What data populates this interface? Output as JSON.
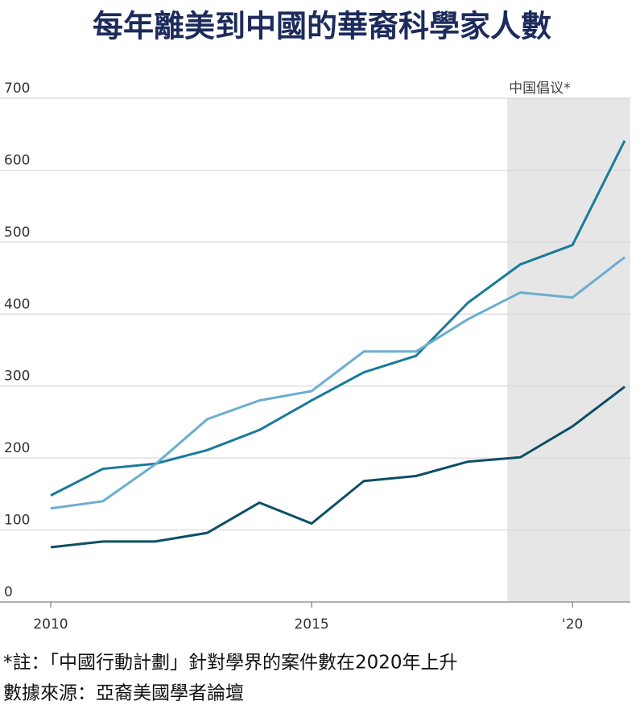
{
  "chart_data": {
    "type": "line",
    "title": "每年離美到中國的華裔科學家人數",
    "x": [
      2010,
      2011,
      2012,
      2013,
      2014,
      2015,
      2016,
      2017,
      2018,
      2019,
      2020,
      2021
    ],
    "xlim": [
      2010,
      2021
    ],
    "xticks": [
      2010,
      2015,
      {
        "value": 2020,
        "label": "'20"
      }
    ],
    "ylim": [
      0,
      700
    ],
    "yticks": [
      0,
      100,
      200,
      300,
      400,
      500,
      600,
      700
    ],
    "grid": true,
    "highlight": {
      "xlim": [
        2018.75,
        2021
      ],
      "label": "中国倡议*"
    },
    "series": [
      {
        "color": "#1a7a9a",
        "values": [
          148,
          185,
          192,
          211,
          239,
          280,
          319,
          342,
          416,
          469,
          496,
          641
        ]
      },
      {
        "color": "#6aaed0",
        "values": [
          130,
          140,
          191,
          254,
          280,
          293,
          348,
          348,
          393,
          430,
          423,
          479
        ]
      },
      {
        "color": "#0d4f66",
        "values": [
          76,
          84,
          84,
          96,
          138,
          109,
          168,
          175,
          195,
          201,
          244,
          299
        ]
      }
    ],
    "notes": [
      "*註：「中國行動計劃」針對學界的案件數在2020年上升",
      "數據來源：亞裔美國學者論壇"
    ]
  }
}
